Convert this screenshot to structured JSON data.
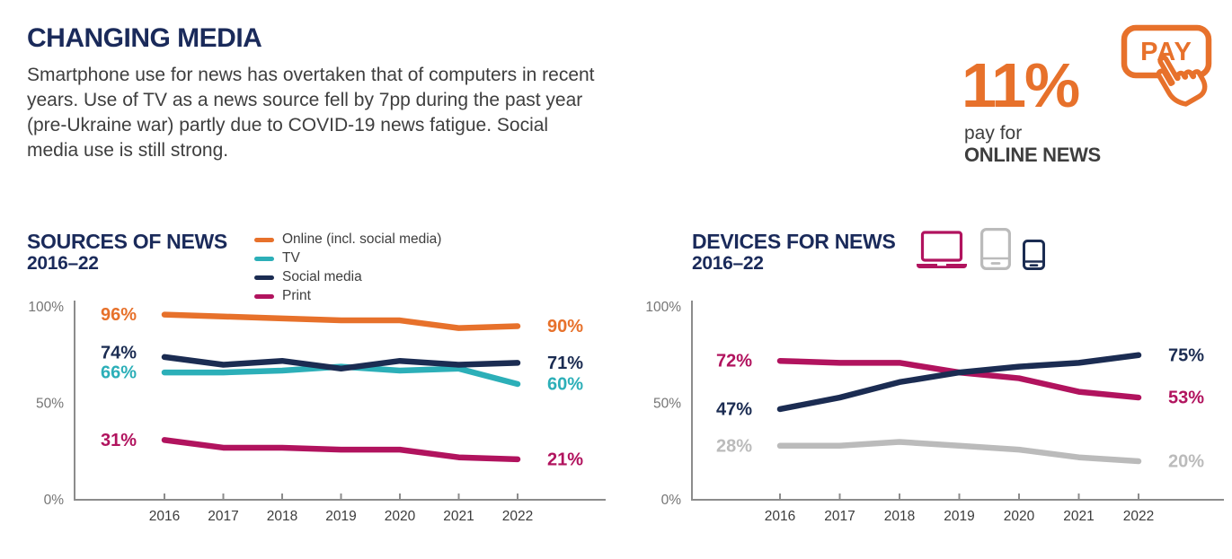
{
  "header": {
    "title": "CHANGING MEDIA",
    "paragraph": "Smartphone use for news has overtaken that of computers in recent years. Use of TV as a news source fell by 7pp during the past year (pre-Ukraine war) partly due to COVID-19 news fatigue. Social media use is still strong.",
    "stat": {
      "value": "11%",
      "label_line1": "pay for",
      "label_line2": "ONLINE NEWS",
      "button_text": "PAY"
    }
  },
  "colors": {
    "navy": "#1B2C52",
    "orange": "#E7712B",
    "teal": "#2CAFB8",
    "magenta": "#B1135E",
    "gray": "#BBBBBB",
    "heading_navy": "#1A2A5A",
    "body_text": "#3E3E3E",
    "axis_gray": "#8C8C8C"
  },
  "chart_data": [
    {
      "type": "line",
      "title": "SOURCES OF NEWS",
      "subtitle": "2016–22",
      "x": [
        "2016",
        "2017",
        "2018",
        "2019",
        "2020",
        "2021",
        "2022"
      ],
      "ylim": [
        0,
        100
      ],
      "grid": false,
      "legend_position": "top-right",
      "yticks": [
        {
          "v": 0,
          "label": "0%"
        },
        {
          "v": 50,
          "label": "50%"
        },
        {
          "v": 100,
          "label": "100%"
        }
      ],
      "series": [
        {
          "name": "Online (incl. social media)",
          "color": "#E7712B",
          "values": [
            96,
            95,
            94,
            93,
            93,
            89,
            90
          ],
          "start_label": "96%",
          "end_label": "90%"
        },
        {
          "name": "TV",
          "color": "#2CAFB8",
          "values": [
            66,
            66,
            67,
            69,
            67,
            68,
            60
          ],
          "start_label": "66%",
          "end_label": "60%"
        },
        {
          "name": "Social media",
          "color": "#1B2C52",
          "values": [
            74,
            70,
            72,
            68,
            72,
            70,
            71
          ],
          "start_label": "74%",
          "end_label": "71%"
        },
        {
          "name": "Print",
          "color": "#B1135E",
          "values": [
            31,
            27,
            27,
            26,
            26,
            22,
            21
          ],
          "start_label": "31%",
          "end_label": "21%"
        }
      ]
    },
    {
      "type": "line",
      "title": "DEVICES FOR NEWS",
      "subtitle": "2016–22",
      "x": [
        "2016",
        "2017",
        "2018",
        "2019",
        "2020",
        "2021",
        "2022"
      ],
      "ylim": [
        0,
        100
      ],
      "grid": false,
      "legend_position": "none",
      "icons": [
        "laptop-icon",
        "tablet-icon",
        "smartphone-icon"
      ],
      "yticks": [
        {
          "v": 0,
          "label": "0%"
        },
        {
          "v": 50,
          "label": "50%"
        },
        {
          "v": 100,
          "label": "100%"
        }
      ],
      "series": [
        {
          "name": "Tablet",
          "color": "#BBBBBB",
          "values": [
            28,
            28,
            30,
            28,
            26,
            22,
            20
          ],
          "start_label": "28%",
          "end_label": "20%"
        },
        {
          "name": "Computer",
          "color": "#B1135E",
          "values": [
            72,
            71,
            71,
            66,
            63,
            56,
            53
          ],
          "start_label": "72%",
          "end_label": "53%"
        },
        {
          "name": "Smartphone",
          "color": "#1B2C52",
          "values": [
            47,
            53,
            61,
            66,
            69,
            71,
            75
          ],
          "start_label": "47%",
          "end_label": "75%"
        }
      ]
    }
  ]
}
